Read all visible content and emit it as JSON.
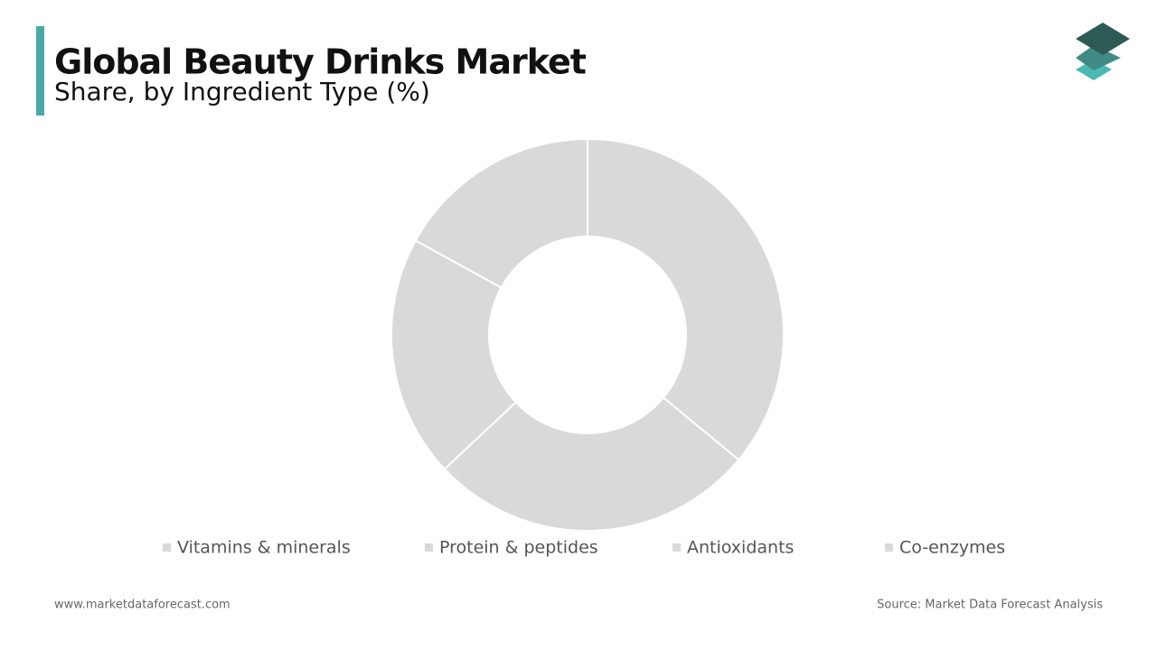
{
  "chart_data": {
    "type": "donut",
    "title": "Global Beauty Drinks Market",
    "subtitle": "Share, by Ingredient Type (%)",
    "categories": [
      "Vitamins & minerals",
      "Protein & peptides",
      "Antioxidants",
      "Co-enzymes"
    ],
    "values": [
      36,
      27,
      20,
      17
    ],
    "colors": [
      "#d9d9d9",
      "#d9d9d9",
      "#d9d9d9",
      "#d9d9d9"
    ],
    "legend": "bottom"
  },
  "footer": {
    "website": "www.marketdataforecast.com",
    "source": "Source: Market Data Forecast Analysis"
  }
}
